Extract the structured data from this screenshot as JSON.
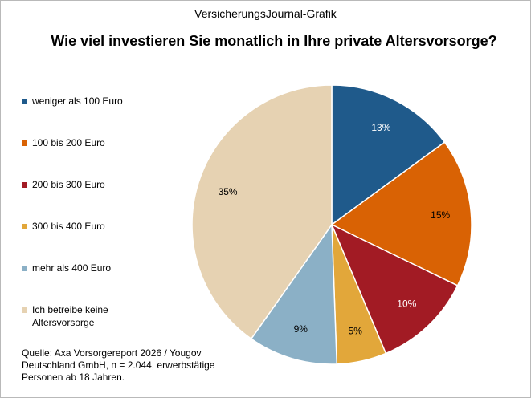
{
  "header": "VersicherungsJournal-Grafik",
  "chart_data": {
    "type": "pie",
    "title": "Wie viel investieren Sie monatlich in Ihre private Altersvorsorge?",
    "start_angle": "12 o'clock, clockwise",
    "slices": [
      {
        "label": "weniger als 100 Euro",
        "value": 13,
        "display": "13%",
        "color": "#1f5a8b",
        "label_color": "#ffffff"
      },
      {
        "label": "100 bis 200 Euro",
        "value": 15,
        "display": "15%",
        "color": "#d96204",
        "label_color": "#000000"
      },
      {
        "label": "200 bis 300 Euro",
        "value": 10,
        "display": "10%",
        "color": "#a21b24",
        "label_color": "#ffffff"
      },
      {
        "label": "300 bis 400 Euro",
        "value": 5,
        "display": "5%",
        "color": "#e2a73a",
        "label_color": "#000000"
      },
      {
        "label": "mehr als 400 Euro",
        "value": 9,
        "display": "9%",
        "color": "#8bb0c6",
        "label_color": "#000000"
      },
      {
        "label": "Ich betreibe keine Altersvorsorge",
        "value": 35,
        "display": "35%",
        "color": "#e6d2b2",
        "label_color": "#000000"
      }
    ]
  },
  "source": "Quelle: Axa Vorsorgereport 2026 / Yougov\nDeutschland GmbH, n = 2.044, erwerbstätige\nPersonen ab 18 Jahren."
}
